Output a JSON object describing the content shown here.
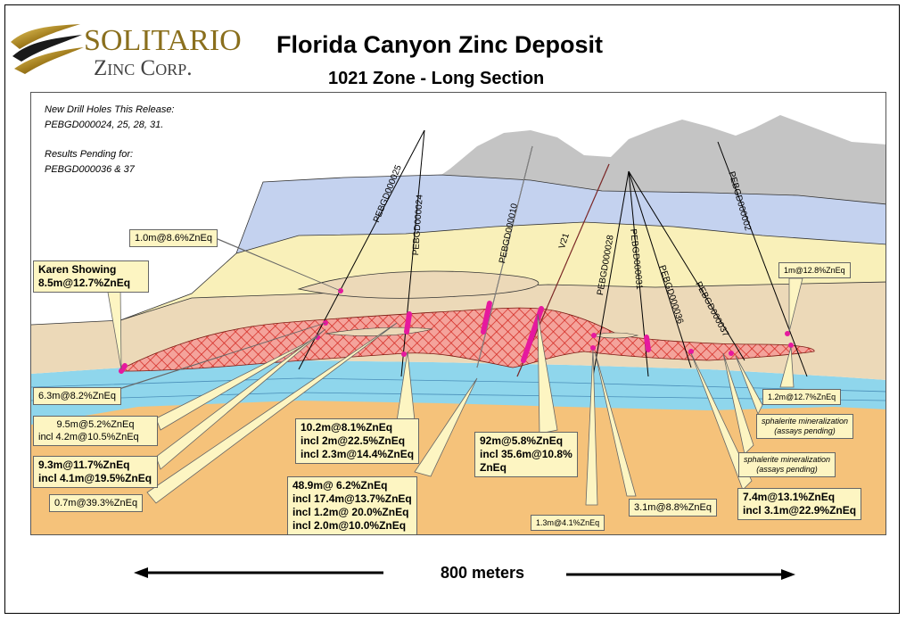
{
  "header": {
    "logo_line1": "SOLITARIO",
    "logo_line2": "Zinc Corp.",
    "title": "Florida Canyon Zinc Deposit",
    "subtitle": "1021 Zone - Long Section"
  },
  "notes": {
    "new_holes_title": "New Drill Holes This Release:",
    "new_holes_list": "PEBGD000024, 25, 28, 31.",
    "pending_title": "Results Pending for:",
    "pending_list": "PEBGD000036 & 37"
  },
  "drill_holes": [
    "PEBGD000025",
    "PEBGD000024",
    "PEBGD000010",
    "V21",
    "PEBGD000028",
    "PEBGD000031",
    "PEBGD000036",
    "PEBGD000037",
    "PEBGD000002"
  ],
  "intercepts": {
    "karen_1": "Karen Showing",
    "karen_2": "8.5m@12.7%ZnEq",
    "i_1m": "1.0m@8.6%ZnEq",
    "i_63": "6.3m@8.2%ZnEq",
    "i_95_1": "9.5m@5.2%ZnEq",
    "i_95_2": "incl 4.2m@10.5%ZnEq",
    "i_93_1": "9.3m@11.7%ZnEq",
    "i_93_2": "incl 4.1m@19.5%ZnEq",
    "i_07": "0.7m@39.3%ZnEq",
    "i_102_1": "10.2m@8.1%ZnEq",
    "i_102_2": "incl 2m@22.5%ZnEq",
    "i_102_3": "incl 2.3m@14.4%ZnEq",
    "i_489_1": "48.9m@ 6.2%ZnEq",
    "i_489_2": "incl 17.4m@13.7%ZnEq",
    "i_489_3": "incl 1.2m@ 20.0%ZnEq",
    "i_489_4": "incl 2.0m@10.0%ZnEq",
    "i_92_1": "92m@5.8%ZnEq",
    "i_92_2": "incl 35.6m@10.8%",
    "i_92_3": "ZnEq",
    "i_13": "1.3m@4.1%ZnEq",
    "i_31": "3.1m@8.8%ZnEq",
    "i_74_1": "7.4m@13.1%ZnEq",
    "i_74_2": "incl 3.1m@22.9%ZnEq",
    "i_1m128": "1m@12.8%ZnEq",
    "i_12": "1.2m@12.7%ZnEq",
    "sph1_1": "sphalerite mineralization",
    "sph1_2": "(assays pending)",
    "sph2_1": "sphalerite mineralization",
    "sph2_2": "(assays pending)"
  },
  "scale": {
    "label": "800 meters"
  },
  "colors": {
    "grey_top": "#c4c4c4",
    "blue_upper": "#c4d2ef",
    "yellow": "#f9f0b9",
    "tan": "#ecd9b8",
    "cyan": "#8fd6ec",
    "orange": "#f5c27a",
    "ore": "#e83a32",
    "intercept": "#e6199e",
    "callout": "#fdf5c2"
  }
}
